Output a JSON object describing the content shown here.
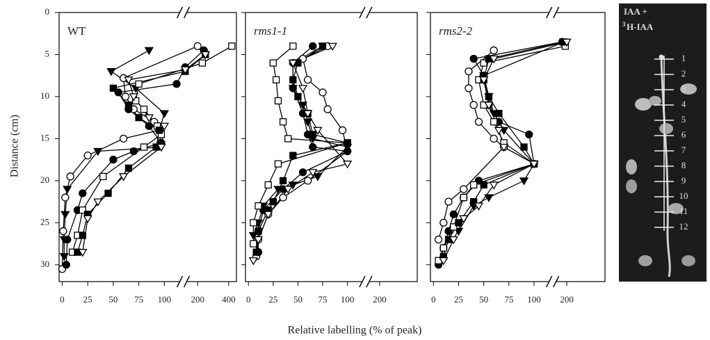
{
  "chart_data": [
    {
      "type": "line",
      "title": "WT",
      "title_italic": false,
      "ylabel": "Distance (cm)",
      "show_ytick_labels": true,
      "ylim": [
        0,
        32
      ],
      "y_inverted": true,
      "yticks": [
        0,
        5,
        10,
        15,
        20,
        25,
        30
      ],
      "xlim": [
        -3,
        115
      ],
      "xticks": [
        0,
        25,
        50,
        75,
        100
      ],
      "x2lim": [
        130,
        450
      ],
      "x2ticks": [
        200,
        400
      ],
      "series": [
        {
          "marker": "triangle-down",
          "filled": true,
          "color": "#000000",
          "x": [
            85,
            48,
            72,
            100,
            95,
            97,
            35,
            5,
            3,
            2,
            2
          ],
          "values": [
            4.5,
            7,
            9,
            12,
            14,
            16,
            16.5,
            21,
            24,
            27,
            29
          ]
        },
        {
          "marker": "circle",
          "filled": false,
          "color": "#000000",
          "x": [
            200,
            60,
            62,
            70,
            90,
            95,
            60,
            25,
            8,
            3,
            1,
            0
          ],
          "values": [
            4,
            7.8,
            10,
            11.5,
            13,
            14,
            15,
            17,
            19.5,
            22,
            26,
            30.5
          ]
        },
        {
          "marker": "circle",
          "filled": true,
          "color": "#000000",
          "x": [
            240,
            120,
            112,
            55,
            65,
            85,
            97,
            70,
            50,
            20,
            15,
            5,
            4
          ],
          "values": [
            4.5,
            6.5,
            8.5,
            9.5,
            11.5,
            13.5,
            15.5,
            16.5,
            17.5,
            21.5,
            23.5,
            27,
            30
          ]
        },
        {
          "marker": "square",
          "filled": false,
          "color": "#000000",
          "x": [
            420,
            230,
            75,
            72,
            80,
            93,
            97,
            80,
            40,
            20,
            15,
            10
          ],
          "values": [
            4,
            6,
            8.5,
            10.5,
            11.5,
            13.5,
            14.5,
            16,
            19.5,
            23.5,
            26.5,
            28.5
          ]
        },
        {
          "marker": "square",
          "filled": true,
          "color": "#000000",
          "x": [
            250,
            120,
            50,
            65,
            75,
            95,
            92,
            65,
            45,
            25,
            20,
            15
          ],
          "values": [
            5,
            7,
            9,
            11,
            12.5,
            14,
            16,
            18.5,
            21.5,
            24,
            26.5,
            28.5
          ]
        },
        {
          "marker": "triangle-down",
          "filled": false,
          "color": "#000000",
          "x": [
            250,
            120,
            65,
            70,
            85,
            100,
            97,
            60,
            35,
            25,
            20
          ],
          "values": [
            5,
            6.8,
            8,
            10,
            12.5,
            13.5,
            16,
            19.5,
            22.5,
            24.5,
            28.5
          ]
        }
      ]
    },
    {
      "type": "line",
      "title": "rms1-1",
      "title_italic": true,
      "show_ytick_labels": false,
      "ylim": [
        0,
        32
      ],
      "y_inverted": true,
      "yticks": [
        0,
        5,
        10,
        15,
        20,
        25,
        30
      ],
      "xlim": [
        -3,
        115
      ],
      "xticks": [
        0,
        25,
        50,
        75,
        100
      ],
      "x2lim": [
        130,
        450
      ],
      "x2ticks": [
        200
      ],
      "series": [
        {
          "marker": "triangle-down",
          "filled": true,
          "color": "#000000",
          "x": [
            75,
            45,
            45,
            55,
            60,
            65,
            100,
            70,
            45,
            30,
            15,
            10,
            5
          ],
          "values": [
            4,
            6,
            9,
            11,
            13,
            15,
            16,
            19.5,
            20.5,
            21,
            23,
            25,
            26.5
          ]
        },
        {
          "marker": "circle",
          "filled": false,
          "color": "#000000",
          "x": [
            80,
            55,
            60,
            75,
            80,
            95,
            100,
            60,
            35,
            20,
            10,
            8
          ],
          "values": [
            4,
            5.5,
            8,
            9.5,
            11.5,
            14,
            16.5,
            20,
            22,
            24,
            27,
            29
          ]
        },
        {
          "marker": "circle",
          "filled": true,
          "color": "#000000",
          "x": [
            65,
            45,
            45,
            55,
            60,
            65,
            100,
            55,
            35,
            15,
            10,
            10
          ],
          "values": [
            4,
            6,
            9,
            12,
            14.5,
            16,
            16.5,
            19,
            21,
            23.5,
            26,
            28.5
          ]
        },
        {
          "marker": "square",
          "filled": false,
          "color": "#000000",
          "x": [
            45,
            25,
            28,
            30,
            35,
            40,
            100,
            30,
            20,
            10,
            5,
            5
          ],
          "values": [
            4,
            6,
            8,
            10.5,
            13,
            15,
            15.5,
            18,
            20.5,
            23,
            25,
            27.5
          ]
        },
        {
          "marker": "square",
          "filled": true,
          "color": "#000000",
          "x": [
            75,
            50,
            45,
            50,
            60,
            65,
            100,
            45,
            35,
            25,
            20,
            10,
            8
          ],
          "values": [
            4,
            6,
            8,
            10,
            12,
            14.5,
            15.5,
            17,
            20,
            22.5,
            23.5,
            26,
            28.5
          ]
        },
        {
          "marker": "triangle-down",
          "filled": false,
          "color": "#000000",
          "x": [
            85,
            45,
            55,
            60,
            70,
            100,
            65,
            40,
            20,
            10,
            5
          ],
          "values": [
            4,
            6,
            9,
            12,
            14,
            18,
            19,
            21,
            24,
            27,
            29.5
          ]
        }
      ]
    },
    {
      "type": "line",
      "title": "rms2-2",
      "title_italic": true,
      "show_ytick_labels": false,
      "ylim": [
        0,
        32
      ],
      "y_inverted": true,
      "yticks": [
        0,
        5,
        10,
        15,
        20,
        25,
        30
      ],
      "xlim": [
        -3,
        115
      ],
      "xticks": [
        0,
        25,
        50,
        75,
        100
      ],
      "x2lim": [
        130,
        450
      ],
      "x2ticks": [
        200
      ],
      "series": [
        {
          "marker": "triangle-down",
          "filled": true,
          "color": "#000000",
          "x": [
            180,
            50,
            55,
            60,
            70,
            100,
            90,
            55,
            40,
            25
          ],
          "values": [
            3.5,
            7.5,
            10,
            12,
            14,
            18,
            20,
            22,
            23,
            26
          ]
        },
        {
          "marker": "circle",
          "filled": false,
          "color": "#000000",
          "x": [
            60,
            35,
            35,
            40,
            45,
            60,
            70,
            30,
            15,
            10,
            5
          ],
          "values": [
            4.5,
            7,
            9,
            11,
            13,
            15,
            16,
            21,
            22.5,
            25,
            27
          ]
        },
        {
          "marker": "circle",
          "filled": true,
          "color": "#000000",
          "x": [
            170,
            40,
            50,
            55,
            65,
            95,
            100,
            45,
            30,
            20,
            15,
            10,
            5
          ],
          "values": [
            3.5,
            5.5,
            7.5,
            11,
            13,
            14.5,
            18,
            20,
            22,
            24,
            26,
            28,
            30
          ]
        },
        {
          "marker": "square",
          "filled": false,
          "color": "#000000",
          "x": [
            190,
            50,
            45,
            50,
            60,
            70,
            100,
            40,
            30,
            20,
            10,
            5
          ],
          "values": [
            4,
            6,
            8,
            11,
            13,
            15.5,
            18,
            20.5,
            22,
            25.5,
            28,
            29.5
          ]
        },
        {
          "marker": "square",
          "filled": true,
          "color": "#000000",
          "x": [
            175,
            55,
            50,
            55,
            65,
            90,
            100,
            50,
            40,
            25,
            15,
            10
          ],
          "values": [
            3.5,
            5.5,
            8,
            10,
            12,
            16,
            18,
            20.5,
            22.5,
            25,
            27,
            29
          ]
        },
        {
          "marker": "triangle-down",
          "filled": false,
          "color": "#000000",
          "x": [
            200,
            60,
            50,
            55,
            65,
            70,
            100,
            60,
            45,
            30,
            20,
            10
          ],
          "values": [
            3.5,
            5.5,
            8,
            11,
            14,
            16,
            18,
            20.5,
            23,
            24.5,
            27,
            29.5
          ]
        }
      ]
    }
  ],
  "xlabel": "Relative labelling (% of peak)",
  "photo": {
    "line1": "IAA +",
    "isotope": "3",
    "line2": "H-IAA",
    "scale_labels": [
      1,
      2,
      3,
      4,
      5,
      6,
      7,
      8,
      9,
      10,
      11,
      12
    ]
  }
}
